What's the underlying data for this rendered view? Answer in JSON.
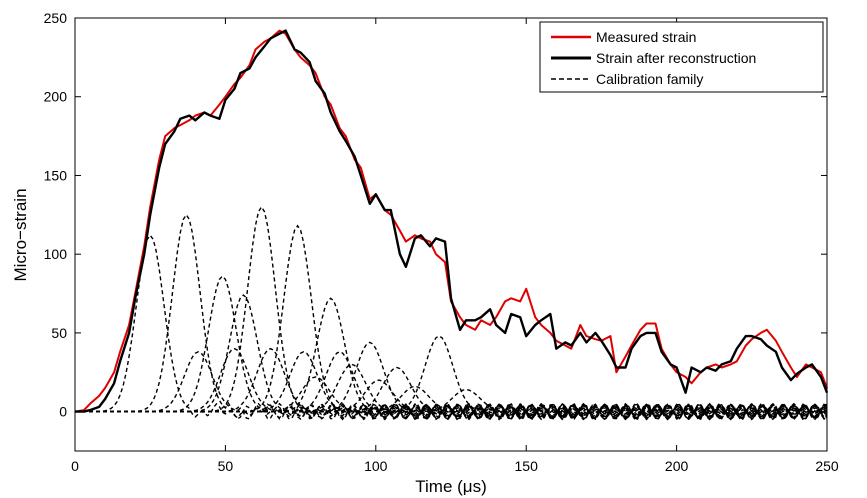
{
  "chart_data": {
    "type": "line",
    "xlabel": "Time (μs)",
    "ylabel": "Micro−strain",
    "xlim": [
      0,
      250
    ],
    "ylim": [
      -25,
      250
    ],
    "x_ticks": [
      "0",
      "50",
      "100",
      "150",
      "200",
      "250"
    ],
    "y_ticks": [
      "0",
      "50",
      "100",
      "150",
      "200",
      "250"
    ],
    "grid": false,
    "legend_position": "top-right",
    "colors": {
      "measured": "#e00000",
      "reconstructed": "#000000",
      "calibration": "#000000"
    },
    "legend": [
      {
        "label": "Measured strain",
        "style": "red-solid"
      },
      {
        "label": "Strain after reconstruction",
        "style": "black-solid-thick"
      },
      {
        "label": "Calibration family",
        "style": "black-dashed"
      }
    ],
    "series": [
      {
        "name": "Measured strain",
        "x": [
          0,
          3,
          5,
          8,
          10,
          13,
          15,
          18,
          20,
          23,
          25,
          28,
          30,
          33,
          35,
          38,
          40,
          43,
          45,
          48,
          50,
          53,
          55,
          58,
          60,
          63,
          65,
          68,
          70,
          73,
          75,
          78,
          80,
          83,
          85,
          88,
          90,
          93,
          95,
          98,
          100,
          103,
          105,
          108,
          110,
          113,
          115,
          118,
          120,
          123,
          125,
          128,
          130,
          133,
          135,
          138,
          140,
          143,
          145,
          148,
          150,
          153,
          155,
          158,
          160,
          163,
          165,
          168,
          170,
          173,
          175,
          178,
          180,
          183,
          185,
          188,
          190,
          193,
          195,
          198,
          200,
          203,
          205,
          208,
          210,
          213,
          215,
          218,
          220,
          223,
          225,
          228,
          230,
          233,
          235,
          238,
          240,
          243,
          245,
          248,
          250
        ],
        "y": [
          0,
          1,
          5,
          10,
          15,
          25,
          38,
          55,
          75,
          105,
          130,
          160,
          175,
          180,
          182,
          185,
          188,
          190,
          188,
          195,
          200,
          208,
          212,
          220,
          230,
          235,
          237,
          242,
          240,
          230,
          225,
          220,
          215,
          200,
          195,
          180,
          175,
          160,
          155,
          135,
          138,
          128,
          125,
          115,
          108,
          112,
          110,
          108,
          100,
          95,
          70,
          60,
          55,
          52,
          58,
          55,
          60,
          70,
          72,
          70,
          78,
          60,
          55,
          50,
          45,
          42,
          40,
          55,
          48,
          46,
          45,
          48,
          25,
          35,
          42,
          52,
          56,
          56,
          40,
          30,
          25,
          22,
          18,
          25,
          28,
          30,
          28,
          30,
          32,
          42,
          46,
          50,
          52,
          45,
          38,
          28,
          22,
          30,
          28,
          25,
          15
        ]
      },
      {
        "name": "Strain after reconstruction",
        "x": [
          0,
          3,
          5,
          8,
          10,
          13,
          15,
          18,
          20,
          23,
          25,
          28,
          30,
          33,
          35,
          38,
          40,
          43,
          45,
          48,
          50,
          53,
          55,
          58,
          60,
          63,
          65,
          68,
          70,
          73,
          75,
          78,
          80,
          83,
          85,
          88,
          90,
          93,
          95,
          98,
          100,
          103,
          105,
          108,
          110,
          113,
          115,
          118,
          120,
          123,
          125,
          128,
          130,
          133,
          135,
          138,
          140,
          143,
          145,
          148,
          150,
          153,
          155,
          158,
          160,
          163,
          165,
          168,
          170,
          173,
          175,
          178,
          180,
          183,
          185,
          188,
          190,
          193,
          195,
          198,
          200,
          203,
          205,
          208,
          210,
          213,
          215,
          218,
          220,
          223,
          225,
          228,
          230,
          233,
          235,
          238,
          240,
          243,
          245,
          248,
          250
        ],
        "y": [
          0,
          0,
          1,
          3,
          8,
          18,
          32,
          50,
          72,
          100,
          125,
          155,
          170,
          178,
          186,
          188,
          185,
          190,
          188,
          186,
          198,
          205,
          215,
          218,
          225,
          232,
          237,
          240,
          242,
          230,
          228,
          222,
          210,
          202,
          190,
          178,
          172,
          162,
          150,
          132,
          138,
          128,
          128,
          100,
          92,
          110,
          112,
          105,
          110,
          108,
          72,
          52,
          58,
          58,
          60,
          65,
          55,
          50,
          62,
          60,
          48,
          55,
          58,
          62,
          40,
          44,
          42,
          50,
          44,
          50,
          45,
          36,
          28,
          28,
          40,
          48,
          50,
          50,
          38,
          30,
          28,
          12,
          28,
          25,
          28,
          26,
          30,
          32,
          40,
          48,
          48,
          46,
          42,
          38,
          28,
          20,
          24,
          28,
          30,
          22,
          12
        ]
      },
      {
        "name": "Calibration family",
        "pulses": [
          {
            "center": 25,
            "amplitude": 112
          },
          {
            "center": 37,
            "amplitude": 125
          },
          {
            "center": 41,
            "amplitude": 38
          },
          {
            "center": 49,
            "amplitude": 86
          },
          {
            "center": 53,
            "amplitude": 40
          },
          {
            "center": 56,
            "amplitude": 74
          },
          {
            "center": 62,
            "amplitude": 130
          },
          {
            "center": 65,
            "amplitude": 40
          },
          {
            "center": 74,
            "amplitude": 118
          },
          {
            "center": 76,
            "amplitude": 38
          },
          {
            "center": 80,
            "amplitude": 22
          },
          {
            "center": 85,
            "amplitude": 72
          },
          {
            "center": 88,
            "amplitude": 38
          },
          {
            "center": 92,
            "amplitude": 30
          },
          {
            "center": 98,
            "amplitude": 44
          },
          {
            "center": 101,
            "amplitude": 20
          },
          {
            "center": 107,
            "amplitude": 28
          },
          {
            "center": 113,
            "amplitude": 16
          },
          {
            "center": 121,
            "amplitude": 48
          },
          {
            "center": 130,
            "amplitude": 14
          }
        ]
      }
    ]
  }
}
